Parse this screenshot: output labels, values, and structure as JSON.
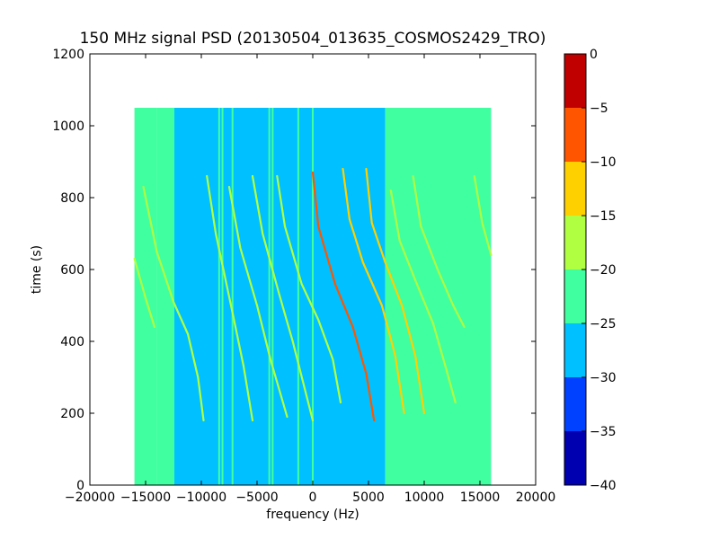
{
  "chart_data": {
    "type": "heatmap",
    "title": "150 MHz signal PSD (20130504_013635_COSMOS2429_TRO)",
    "xlabel": "frequency (Hz)",
    "ylabel": "time (s)",
    "xlim": [
      -20000,
      20000
    ],
    "ylim": [
      0,
      1200
    ],
    "x_ticks": [
      -20000,
      -15000,
      -10000,
      -5000,
      0,
      5000,
      10000,
      15000,
      20000
    ],
    "x_tick_labels": [
      "−20000",
      "−15000",
      "−10000",
      "−5000",
      "0",
      "5000",
      "10000",
      "15000",
      "20000"
    ],
    "y_ticks": [
      0,
      200,
      400,
      600,
      800,
      1000,
      1200
    ],
    "y_tick_labels": [
      "0",
      "200",
      "400",
      "600",
      "800",
      "1000",
      "1200"
    ],
    "data_extent": {
      "x": [
        -16000,
        16000
      ],
      "y": [
        0,
        1050
      ]
    },
    "regions": [
      {
        "x": [
          -16000,
          -14000
        ],
        "level": -22.5
      },
      {
        "x": [
          -14000,
          -12500
        ],
        "level": -25
      },
      {
        "x": [
          -12500,
          6500
        ],
        "level": -27.5
      },
      {
        "x": [
          6500,
          16000
        ],
        "level": -22.5
      }
    ],
    "vertical_lines": [
      {
        "x": -12500,
        "level": -22.5
      },
      {
        "x": -8400,
        "level": -22.5
      },
      {
        "x": -8100,
        "level": -22.5
      },
      {
        "x": -7200,
        "level": -22.5
      },
      {
        "x": -3900,
        "level": -22.5
      },
      {
        "x": -3600,
        "level": -22.5
      },
      {
        "x": -1300,
        "level": -22.5
      },
      {
        "x": 0,
        "level": -22.5
      }
    ],
    "traces": [
      {
        "points": [
          [
            -15200,
            830
          ],
          [
            -14000,
            650
          ],
          [
            -12500,
            510
          ],
          [
            -11200,
            420
          ],
          [
            -10300,
            300
          ],
          [
            -9800,
            180
          ]
        ],
        "level": -17.5
      },
      {
        "points": [
          [
            -16000,
            630
          ],
          [
            -15000,
            520
          ],
          [
            -14200,
            440
          ]
        ],
        "level": -17.5
      },
      {
        "points": [
          [
            -9500,
            860
          ],
          [
            -8700,
            700
          ],
          [
            -7200,
            480
          ],
          [
            -6200,
            330
          ],
          [
            -5400,
            180
          ]
        ],
        "level": -17.5
      },
      {
        "points": [
          [
            -7500,
            830
          ],
          [
            -6500,
            660
          ],
          [
            -5000,
            500
          ],
          [
            -3800,
            350
          ],
          [
            -2300,
            190
          ]
        ],
        "level": -17.5
      },
      {
        "points": [
          [
            -5400,
            860
          ],
          [
            -4500,
            700
          ],
          [
            -3000,
            530
          ],
          [
            -1800,
            400
          ],
          [
            0,
            180
          ]
        ],
        "level": -17.5
      },
      {
        "points": [
          [
            -3200,
            860
          ],
          [
            -2500,
            720
          ],
          [
            -1000,
            560
          ],
          [
            500,
            460
          ],
          [
            1800,
            350
          ],
          [
            2500,
            230
          ]
        ],
        "level": -17.5
      },
      {
        "points": [
          [
            0,
            870
          ],
          [
            500,
            720
          ],
          [
            2000,
            560
          ],
          [
            3600,
            440
          ],
          [
            4800,
            310
          ],
          [
            5500,
            180
          ]
        ],
        "level": -7.5
      },
      {
        "points": [
          [
            2700,
            880
          ],
          [
            3300,
            740
          ],
          [
            4500,
            620
          ],
          [
            6200,
            500
          ],
          [
            7400,
            360
          ],
          [
            8200,
            200
          ]
        ],
        "level": -12.5
      },
      {
        "points": [
          [
            4800,
            880
          ],
          [
            5300,
            730
          ],
          [
            6500,
            620
          ],
          [
            8000,
            500
          ],
          [
            9200,
            360
          ],
          [
            10000,
            200
          ]
        ],
        "level": -12.5
      },
      {
        "points": [
          [
            7000,
            820
          ],
          [
            7800,
            680
          ],
          [
            9200,
            570
          ],
          [
            10800,
            450
          ],
          [
            12000,
            320
          ],
          [
            12800,
            230
          ]
        ],
        "level": -17.5
      },
      {
        "points": [
          [
            9000,
            860
          ],
          [
            9700,
            720
          ],
          [
            11200,
            600
          ],
          [
            12600,
            500
          ],
          [
            13600,
            440
          ]
        ],
        "level": -17.5
      },
      {
        "points": [
          [
            14500,
            860
          ],
          [
            15200,
            730
          ],
          [
            16000,
            640
          ]
        ],
        "level": -17.5
      }
    ],
    "colorbar": {
      "min": -40,
      "max": 0,
      "ticks": [
        0,
        -5,
        -10,
        -15,
        -20,
        -25,
        -30,
        -35,
        -40
      ],
      "tick_labels": [
        "0",
        "−5",
        "−10",
        "−15",
        "−20",
        "−25",
        "−30",
        "−35",
        "−40"
      ],
      "bands": [
        {
          "from": -40,
          "to": -35,
          "color": "#0000b0"
        },
        {
          "from": -35,
          "to": -30,
          "color": "#0040ff"
        },
        {
          "from": -30,
          "to": -25,
          "color": "#00c0ff"
        },
        {
          "from": -25,
          "to": -20,
          "color": "#40ffa0"
        },
        {
          "from": -20,
          "to": -15,
          "color": "#b0ff40"
        },
        {
          "from": -15,
          "to": -10,
          "color": "#ffd000"
        },
        {
          "from": -10,
          "to": -5,
          "color": "#ff5500"
        },
        {
          "from": -5,
          "to": 0,
          "color": "#c00000"
        }
      ]
    }
  }
}
